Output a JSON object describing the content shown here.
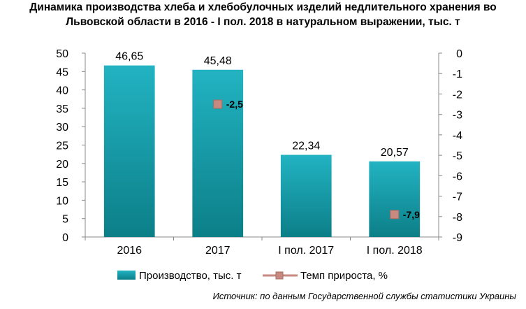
{
  "chart_title_line1": "Динамика производства хлеба и хлебобулочных изделий недлительного хранения во",
  "chart_title_line2": "Львовской области в 2016 - I пол. 2018 в натуральном выражении, тыс. т",
  "source": "Источник: по данным Государственной службы статистики Украины",
  "colors": {
    "bar_top": "#22b3c2",
    "bar_bottom": "#0c7f88",
    "marker": "#c88a80",
    "marker_border": "#a76a62",
    "axis": "#888888"
  },
  "chart_data": {
    "type": "bar",
    "categories": [
      "2016",
      "2017",
      "I пол. 2017",
      "I пол. 2018"
    ],
    "series": [
      {
        "name": "Производство, тыс. т",
        "type": "bar",
        "axis": "left",
        "values": [
          46.65,
          45.48,
          22.34,
          20.57
        ],
        "labels": [
          "46,65",
          "45,48",
          "22,34",
          "20,57"
        ]
      },
      {
        "name": "Темп прироста, %",
        "type": "line",
        "axis": "right",
        "values": [
          null,
          -2.5,
          null,
          -7.9
        ],
        "labels": [
          null,
          "-2,5",
          null,
          "-7,9"
        ]
      }
    ],
    "y_left": {
      "min": 0,
      "max": 50,
      "step": 5,
      "ticks": [
        "0",
        "5",
        "10",
        "15",
        "20",
        "25",
        "30",
        "35",
        "40",
        "45",
        "50"
      ]
    },
    "y_right": {
      "min": -9,
      "max": 0,
      "step": 1,
      "ticks": [
        "0",
        "-1",
        "-2",
        "-3",
        "-4",
        "-5",
        "-6",
        "-7",
        "-8",
        "-9"
      ]
    },
    "legend": [
      "Производство, тыс. т",
      "Темп прироста, %"
    ],
    "legend_position": "bottom",
    "grid": false
  }
}
